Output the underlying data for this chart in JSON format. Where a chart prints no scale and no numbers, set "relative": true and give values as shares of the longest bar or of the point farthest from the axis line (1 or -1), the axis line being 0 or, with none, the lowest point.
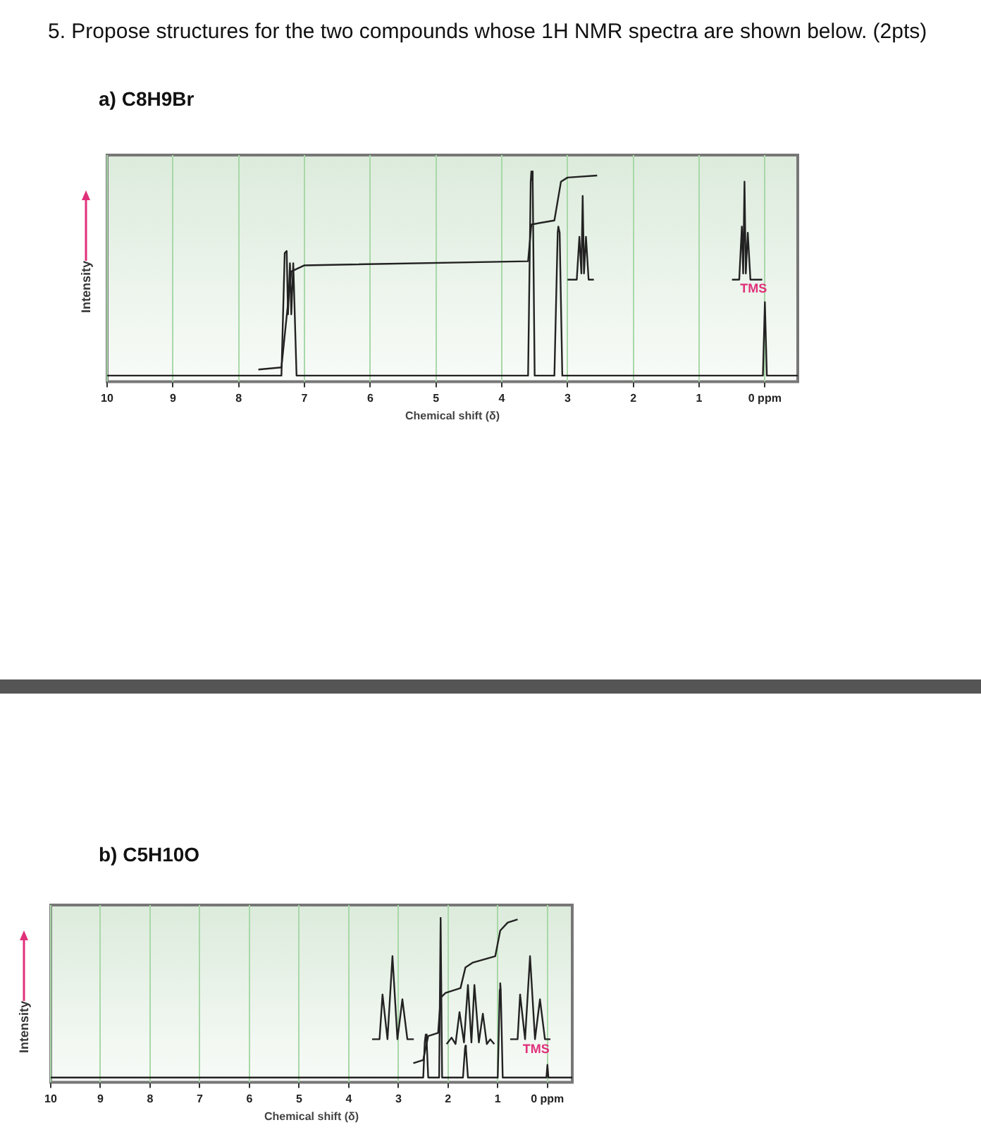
{
  "chart_data": [
    {
      "type": "line",
      "title": "5. Propose structures for the two compounds whose 1H NMR spectra are shown below. (2pts)",
      "subtitle": "a) C8H9Br",
      "xlabel": "Chemical shift (δ)",
      "ylabel": "Intensity",
      "relative": true,
      "grid": "x",
      "xlim": [
        10,
        -0.5
      ],
      "xticks": [
        10,
        9,
        8,
        7,
        6,
        5,
        4,
        3,
        2,
        1,
        {
          "value": 0,
          "label": "0 ppm"
        }
      ],
      "annotations": [
        "TMS"
      ],
      "series": [
        {
          "color": "#222222",
          "x": [
            10,
            7.35,
            7.3,
            7.27,
            7.25,
            7.22,
            7.2,
            7.17,
            7.12,
            3.6,
            3.56,
            3.55,
            3.53,
            3.5,
            3.2,
            3.15,
            3.14,
            3.12,
            3.08,
            0.03,
            0,
            -0.03,
            -0.5
          ],
          "values": [
            0,
            0,
            0.6,
            0.61,
            0.3,
            0.55,
            0.3,
            0.55,
            0,
            0,
            0.95,
            1,
            0.95,
            0,
            0,
            0.7,
            0.73,
            0.7,
            0,
            0,
            0.36,
            0,
            0
          ]
        },
        {
          "color": "#222222",
          "x": [
            7.7,
            7.35,
            7.2,
            7.0,
            3.6,
            3.55,
            3.2,
            3.1,
            3.0,
            2.55
          ],
          "values": [
            0.03,
            0.04,
            0.51,
            0.54,
            0.56,
            0.74,
            0.76,
            0.95,
            0.97,
            0.98
          ]
        },
        {
          "color": "#222222",
          "x": [
            3.0,
            2.86,
            2.82,
            2.79,
            2.77,
            2.75,
            2.72,
            2.68,
            2.6
          ],
          "values": [
            0.47,
            0.47,
            0.68,
            0.5,
            0.88,
            0.5,
            0.68,
            0.47,
            0.47
          ]
        },
        {
          "color": "#222222",
          "x": [
            0.5,
            0.39,
            0.35,
            0.33,
            0.31,
            0.29,
            0.26,
            0.22,
            0.04
          ],
          "values": [
            0.47,
            0.47,
            0.73,
            0.5,
            0.95,
            0.5,
            0.7,
            0.47,
            0.47
          ]
        }
      ]
    },
    {
      "type": "line",
      "subtitle": "b) C5H10O",
      "xlabel": "Chemical shift (δ)",
      "ylabel": "Intensity",
      "relative": true,
      "grid": "x",
      "xlim": [
        10,
        -0.5
      ],
      "xticks": [
        10,
        9,
        8,
        7,
        6,
        5,
        4,
        3,
        2,
        1,
        {
          "value": 0,
          "label": "0 ppm"
        }
      ],
      "annotations": [
        "TMS"
      ],
      "series": [
        {
          "color": "#222222",
          "x": [
            10,
            2.5,
            2.47,
            2.45,
            2.43,
            2.4,
            2.18,
            2.15,
            2.12,
            1.7,
            1.66,
            1.65,
            1.64,
            1.6,
            1.0,
            0.96,
            0.95,
            0.94,
            0.9,
            0.02,
            0,
            -0.02,
            -0.5
          ],
          "values": [
            0,
            0,
            0.22,
            0.27,
            0.22,
            0,
            0,
            1,
            0,
            0,
            0.18,
            0.2,
            0.18,
            0,
            0,
            0.55,
            0.59,
            0.55,
            0,
            0,
            0.08,
            0,
            0
          ]
        },
        {
          "color": "#222222",
          "x": [
            2.7,
            2.5,
            2.4,
            2.2,
            2.15,
            2.05,
            1.75,
            1.65,
            1.5,
            1.05,
            0.95,
            0.8,
            0.6
          ],
          "values": [
            0.09,
            0.11,
            0.26,
            0.28,
            0.5,
            0.53,
            0.56,
            0.69,
            0.72,
            0.76,
            0.92,
            0.97,
            0.99
          ]
        },
        {
          "color": "#222222",
          "x": [
            3.53,
            3.38,
            3.32,
            3.22,
            3.12,
            3.02,
            2.92,
            2.82,
            2.69
          ],
          "values": [
            0.24,
            0.24,
            0.52,
            0.24,
            0.76,
            0.24,
            0.49,
            0.24,
            0.24
          ]
        },
        {
          "color": "#222222",
          "x": [
            2.03,
            1.93,
            1.85,
            1.77,
            1.68,
            1.6,
            1.53,
            1.47,
            1.38,
            1.3,
            1.22,
            1.15,
            1.07
          ],
          "values": [
            0.21,
            0.25,
            0.21,
            0.41,
            0.22,
            0.58,
            0.22,
            0.58,
            0.22,
            0.4,
            0.21,
            0.24,
            0.21
          ]
        },
        {
          "color": "#222222",
          "x": [
            0.75,
            0.6,
            0.55,
            0.45,
            0.35,
            0.25,
            0.15,
            0.05,
            -0.06
          ],
          "values": [
            0.24,
            0.24,
            0.52,
            0.24,
            0.76,
            0.24,
            0.49,
            0.24,
            0.24
          ]
        }
      ]
    }
  ]
}
